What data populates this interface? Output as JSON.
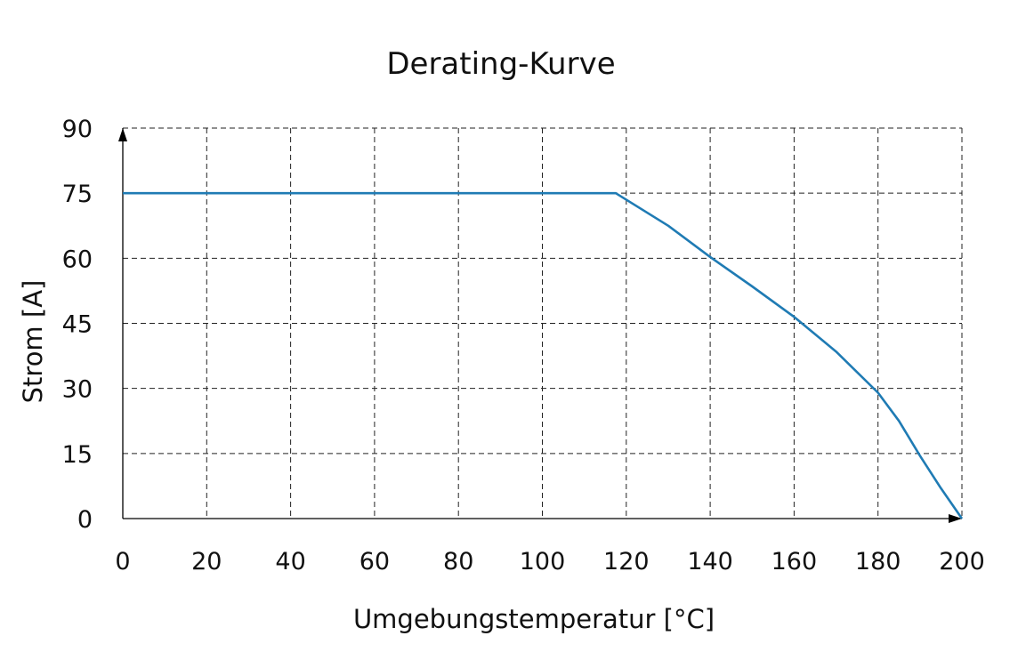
{
  "chart_data": {
    "type": "line",
    "title": "Derating-Kurve",
    "xlabel": "Umgebungstemperatur [°C]",
    "ylabel": "Strom [A]",
    "xlim": [
      0,
      200
    ],
    "ylim": [
      0,
      90
    ],
    "x_ticks": [
      0,
      20,
      40,
      60,
      80,
      100,
      120,
      140,
      160,
      180,
      200
    ],
    "y_ticks": [
      0,
      15,
      30,
      45,
      60,
      75,
      90
    ],
    "grid": true,
    "legend": "none",
    "series": [
      {
        "color": "#1f7bb4",
        "x": [
          0,
          117.5,
          130,
          140,
          150,
          160,
          170,
          180,
          185,
          190,
          195,
          200
        ],
        "y": [
          75,
          75,
          67.5,
          60.3,
          53.5,
          46.5,
          38.5,
          29,
          22.5,
          14.5,
          7,
          0
        ]
      }
    ]
  }
}
